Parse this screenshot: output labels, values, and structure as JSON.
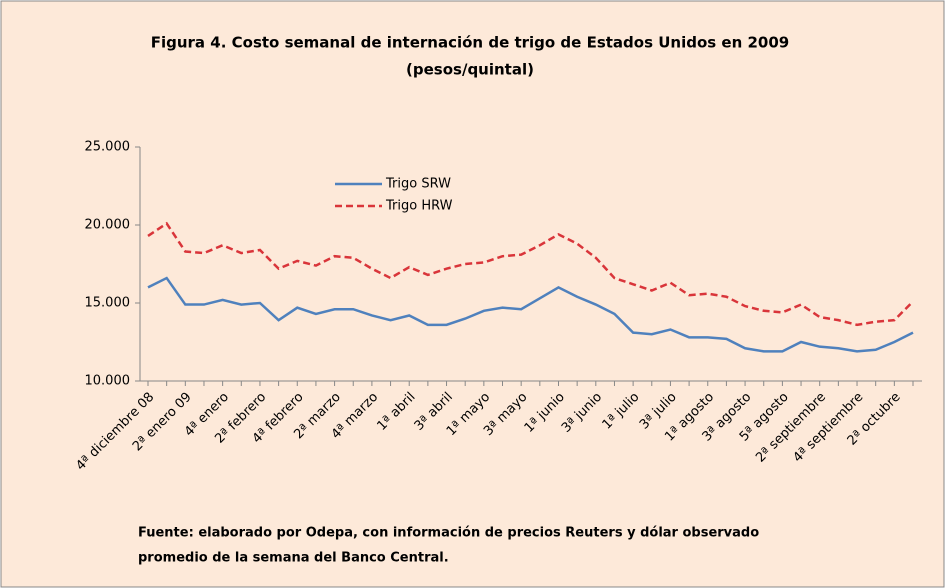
{
  "chart_data": {
    "type": "line",
    "title": "Figura 4. Costo semanal de internación de trigo de Estados Unidos en 2009",
    "subtitle": "(pesos/quintal)",
    "categories": [
      "4ª diciembre 08",
      null,
      "2ª enero 09",
      null,
      "4ª enero",
      null,
      "2ª febrero",
      null,
      "4ª febrero",
      null,
      "2ª marzo",
      null,
      "4ª marzo",
      null,
      "1ª abril",
      null,
      "3ª abril",
      null,
      "1ª mayo",
      null,
      "3ª mayo",
      null,
      "1ª junio",
      null,
      "3ª junio",
      null,
      "1ª julio",
      null,
      "3ª julio",
      null,
      "1ª agosto",
      null,
      "3ª agosto",
      null,
      "5ª agosto",
      null,
      "2ª septiembre",
      null,
      "4ª septiembre",
      null,
      "2ª octubre",
      null
    ],
    "series": [
      {
        "name": "Trigo SRW",
        "color": "#4f81bd",
        "dashed": false,
        "values": [
          16000,
          16600,
          14900,
          14900,
          15200,
          14900,
          15000,
          13900,
          14700,
          14300,
          14600,
          14600,
          14200,
          13900,
          14200,
          13600,
          13600,
          14000,
          14500,
          14700,
          14600,
          15300,
          16000,
          15400,
          14900,
          14300,
          13100,
          13000,
          13300,
          12800,
          12800,
          12700,
          12100,
          11900,
          11900,
          12500,
          12200,
          12100,
          11900,
          12000,
          12500,
          13100
        ]
      },
      {
        "name": "Trigo HRW",
        "color": "#d9353a",
        "dashed": true,
        "values": [
          19300,
          20100,
          18300,
          18200,
          18700,
          18200,
          18400,
          17200,
          17700,
          17400,
          18000,
          17900,
          17200,
          16600,
          17300,
          16800,
          17200,
          17500,
          17600,
          18000,
          18100,
          18700,
          19400,
          18800,
          17900,
          16600,
          16200,
          15800,
          16300,
          15500,
          15600,
          15400,
          14800,
          14500,
          14400,
          14900,
          14100,
          13900,
          13600,
          13800,
          13900,
          15100
        ]
      }
    ],
    "ylim": [
      10000,
      25000
    ],
    "yticks": [
      {
        "value": 10000,
        "label": "10.000"
      },
      {
        "value": 15000,
        "label": "15.000"
      },
      {
        "value": 20000,
        "label": "20.000"
      },
      {
        "value": 25000,
        "label": "25.000"
      }
    ],
    "grid": false,
    "source": [
      "Fuente: elaborado por Odepa, con información de precios Reuters y dólar observado",
      "promedio de la semana del Banco Central."
    ]
  }
}
